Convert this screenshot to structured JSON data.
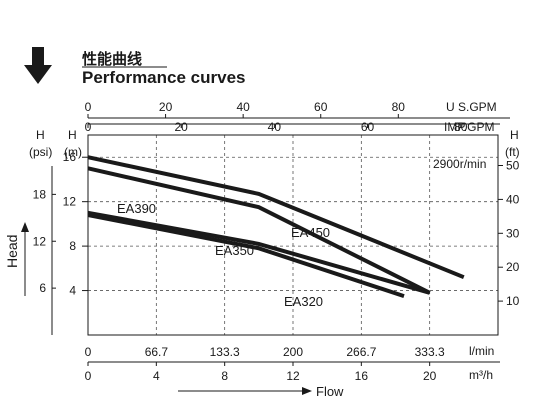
{
  "header": {
    "title_cn": "性能曲线",
    "title_en": "Performance curves",
    "arrow_icon": "down-arrow-icon"
  },
  "chart_data": {
    "type": "line",
    "title": "Performance curves",
    "speed_label": "2900r/min",
    "x_axes": {
      "bottom_flow_lmin": {
        "unit": "l/min",
        "ticks": [
          "0",
          "66.7",
          "133.3",
          "200",
          "266.7",
          "333.3"
        ],
        "range": [
          0,
          400
        ]
      },
      "bottom_flow_m3h": {
        "unit": "m³/h",
        "ticks": [
          "0",
          "4",
          "8",
          "12",
          "16",
          "20"
        ],
        "range": [
          0,
          24
        ]
      },
      "top_us_gpm": {
        "unit": "U S.GPM",
        "ticks": [
          "0",
          "20",
          "40",
          "60",
          "80"
        ],
        "range": [
          0,
          105.7
        ]
      },
      "top_imp_gpm": {
        "unit": "IMP.GPM",
        "ticks": [
          "0",
          "20",
          "40",
          "60",
          "80"
        ],
        "range": [
          0,
          88
        ]
      },
      "flow_label": "Flow"
    },
    "y_axes": {
      "left_psi": {
        "unit_letter": "H",
        "unit": "(psi)",
        "ticks": [
          "18",
          "12",
          "6"
        ],
        "range": [
          0,
          25.6
        ]
      },
      "left_m": {
        "unit_letter": "H",
        "unit": "(m)",
        "ticks": [
          "16",
          "12",
          "8",
          "4"
        ],
        "range": [
          0,
          18
        ]
      },
      "right_ft": {
        "unit_letter": "H",
        "unit": "(ft)",
        "ticks": [
          "50",
          "40",
          "30",
          "20",
          "10"
        ],
        "range": [
          0,
          59
        ]
      },
      "head_label": "Head"
    },
    "grid": true,
    "series": [
      {
        "name": "EA450",
        "x_m3h": [
          0,
          10,
          22
        ],
        "y_m": [
          16,
          12.7,
          5.2
        ]
      },
      {
        "name": "EA390",
        "x_m3h": [
          0,
          10,
          20
        ],
        "y_m": [
          15,
          11.5,
          3.8
        ]
      },
      {
        "name": "EA350",
        "x_m3h": [
          0,
          10,
          20
        ],
        "y_m": [
          11,
          8.2,
          3.8
        ]
      },
      {
        "name": "EA320",
        "x_m3h": [
          0,
          10,
          18.5
        ],
        "y_m": [
          10.8,
          7.8,
          3.5
        ]
      }
    ],
    "series_labels": [
      "EA450",
      "EA390",
      "EA350",
      "EA320"
    ]
  }
}
